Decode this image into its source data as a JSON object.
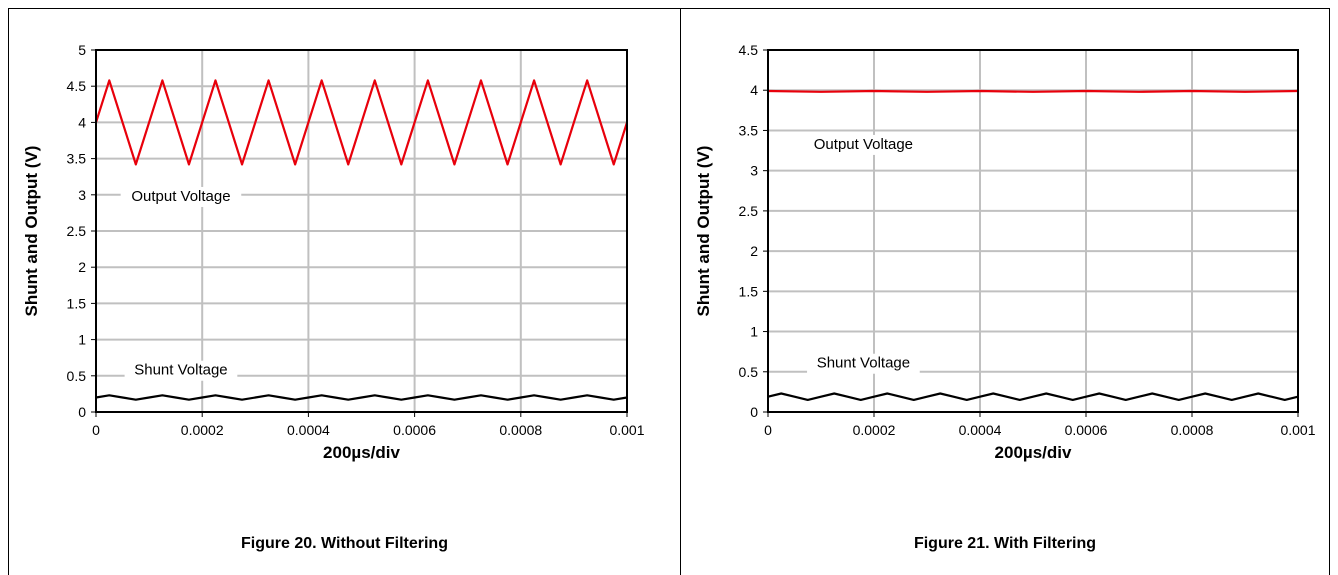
{
  "chart_data": [
    {
      "type": "line",
      "caption": "Figure 20. Without Filtering",
      "xlabel": "200µs/div",
      "ylabel": "Shunt and Output (V)",
      "xlim": [
        0,
        0.001
      ],
      "ylim": [
        0,
        5
      ],
      "x_ticks": [
        "0",
        "0.0002",
        "0.0004",
        "0.0006",
        "0.0008",
        "0.001"
      ],
      "y_ticks": [
        "0",
        "0.5",
        "1",
        "1.5",
        "2",
        "2.5",
        "3",
        "3.5",
        "4",
        "4.5",
        "5"
      ],
      "grid": true,
      "annotations": [
        {
          "text": "Output Voltage",
          "x": 0.00016,
          "y": 2.97
        },
        {
          "text": "Shunt Voltage",
          "x": 0.00016,
          "y": 0.57
        }
      ],
      "series": [
        {
          "color": "#e8000b",
          "x": [
            0,
            2.5e-05,
            7.5e-05,
            0.000125,
            0.000175,
            0.000225,
            0.000275,
            0.000325,
            0.000375,
            0.000425,
            0.000475,
            0.000525,
            0.000575,
            0.000625,
            0.000675,
            0.000725,
            0.000775,
            0.000825,
            0.000875,
            0.000925,
            0.000975,
            0.001
          ],
          "y": [
            4.0,
            4.58,
            3.42,
            4.58,
            3.42,
            4.58,
            3.42,
            4.58,
            3.42,
            4.58,
            3.42,
            4.58,
            3.42,
            4.58,
            3.42,
            4.58,
            3.42,
            4.58,
            3.42,
            4.58,
            3.42,
            4.0
          ]
        },
        {
          "color": "#000000",
          "x": [
            0,
            2.5e-05,
            5e-05,
            7.5e-05,
            0.0001,
            0.000125,
            0.00015,
            0.000175,
            0.0002,
            0.000225,
            0.00025,
            0.000275,
            0.0003,
            0.000325,
            0.00035,
            0.000375,
            0.0004,
            0.000425,
            0.00045,
            0.000475,
            0.0005,
            0.000525,
            0.00055,
            0.000575,
            0.0006,
            0.000625,
            0.00065,
            0.000675,
            0.0007,
            0.000725,
            0.00075,
            0.000775,
            0.0008,
            0.000825,
            0.00085,
            0.000875,
            0.0009,
            0.000925,
            0.00095,
            0.000975,
            0.001
          ],
          "y": [
            0.2,
            0.23,
            0.2,
            0.17,
            0.2,
            0.23,
            0.2,
            0.17,
            0.2,
            0.23,
            0.2,
            0.17,
            0.2,
            0.23,
            0.2,
            0.17,
            0.2,
            0.23,
            0.2,
            0.17,
            0.2,
            0.23,
            0.2,
            0.17,
            0.2,
            0.23,
            0.2,
            0.17,
            0.2,
            0.23,
            0.2,
            0.17,
            0.2,
            0.23,
            0.2,
            0.17,
            0.2,
            0.23,
            0.2,
            0.17,
            0.2
          ]
        }
      ]
    },
    {
      "type": "line",
      "caption": "Figure 21. With Filtering",
      "xlabel": "200µs/div",
      "ylabel": "Shunt and Output (V)",
      "xlim": [
        0,
        0.001
      ],
      "ylim": [
        0,
        4.5
      ],
      "x_ticks": [
        "0",
        "0.0002",
        "0.0004",
        "0.0006",
        "0.0008",
        "0.001"
      ],
      "y_ticks": [
        "0",
        "0.5",
        "1",
        "1.5",
        "2",
        "2.5",
        "3",
        "3.5",
        "4",
        "4.5"
      ],
      "grid": true,
      "annotations": [
        {
          "text": "Output Voltage",
          "x": 0.00018,
          "y": 3.32
        },
        {
          "text": "Shunt Voltage",
          "x": 0.00018,
          "y": 0.6
        }
      ],
      "series": [
        {
          "color": "#e8000b",
          "x": [
            0,
            0.0001,
            0.0002,
            0.0003,
            0.0004,
            0.0005,
            0.0006,
            0.0007,
            0.0008,
            0.0009,
            0.001
          ],
          "y": [
            3.99,
            3.98,
            3.99,
            3.98,
            3.99,
            3.98,
            3.99,
            3.98,
            3.99,
            3.98,
            3.99
          ]
        },
        {
          "color": "#000000",
          "x": [
            0,
            2.5e-05,
            5e-05,
            7.5e-05,
            0.0001,
            0.000125,
            0.00015,
            0.000175,
            0.0002,
            0.000225,
            0.00025,
            0.000275,
            0.0003,
            0.000325,
            0.00035,
            0.000375,
            0.0004,
            0.000425,
            0.00045,
            0.000475,
            0.0005,
            0.000525,
            0.00055,
            0.000575,
            0.0006,
            0.000625,
            0.00065,
            0.000675,
            0.0007,
            0.000725,
            0.00075,
            0.000775,
            0.0008,
            0.000825,
            0.00085,
            0.000875,
            0.0009,
            0.000925,
            0.00095,
            0.000975,
            0.001
          ],
          "y": [
            0.19,
            0.23,
            0.19,
            0.15,
            0.19,
            0.23,
            0.19,
            0.15,
            0.19,
            0.23,
            0.19,
            0.15,
            0.19,
            0.23,
            0.19,
            0.15,
            0.19,
            0.23,
            0.19,
            0.15,
            0.19,
            0.23,
            0.19,
            0.15,
            0.19,
            0.23,
            0.19,
            0.15,
            0.19,
            0.23,
            0.19,
            0.15,
            0.19,
            0.23,
            0.19,
            0.15,
            0.19,
            0.23,
            0.19,
            0.15,
            0.19
          ]
        }
      ]
    }
  ]
}
